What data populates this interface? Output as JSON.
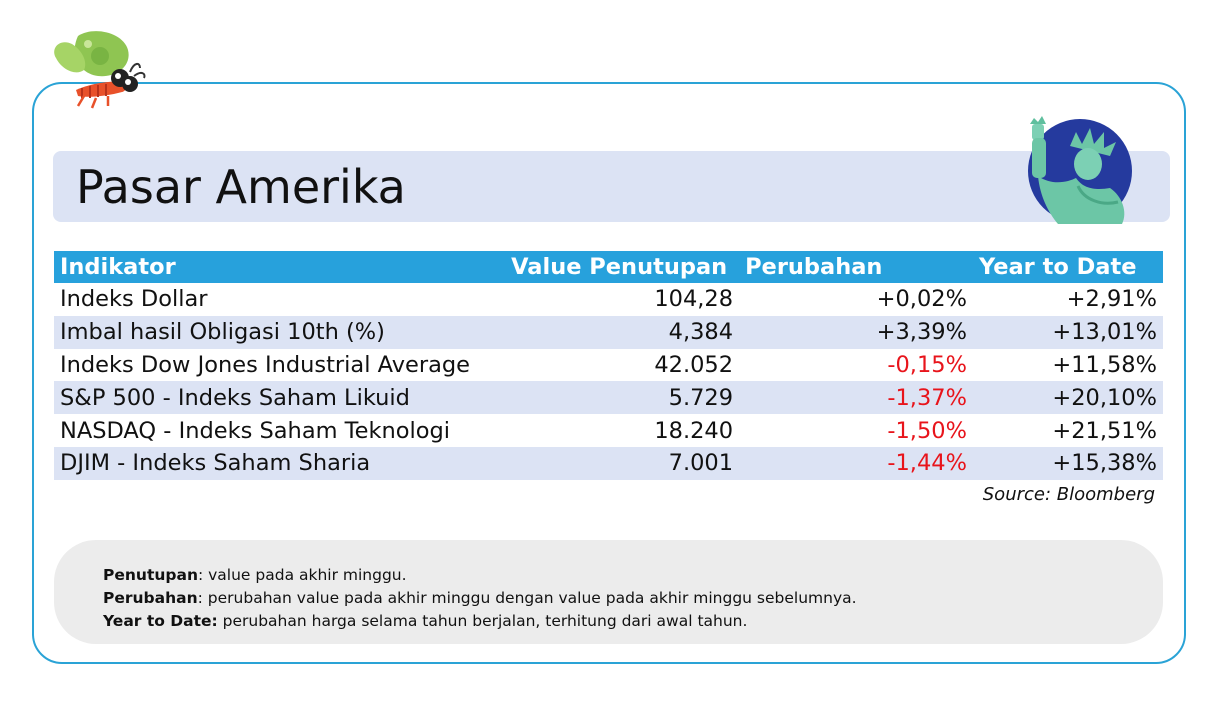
{
  "title": "Pasar Amerika",
  "table": {
    "headers": [
      "Indikator",
      "Value Penutupan",
      "Perubahan",
      "Year to Date"
    ],
    "rows": [
      {
        "indikator": "Indeks Dollar",
        "value": "104,28",
        "perubahan": "+0,02%",
        "ytd": "+2,91%"
      },
      {
        "indikator": "Imbal hasil Obligasi 10th (%)",
        "value": "4,384",
        "perubahan": "+3,39%",
        "ytd": "+13,01%"
      },
      {
        "indikator": "Indeks Dow Jones Industrial Average",
        "value": "42.052",
        "perubahan": "-0,15%",
        "ytd": "+11,58%"
      },
      {
        "indikator": "S&P 500 - Indeks Saham Likuid",
        "value": "5.729",
        "perubahan": "-1,37%",
        "ytd": "+20,10%"
      },
      {
        "indikator": "NASDAQ - Indeks Saham Teknologi",
        "value": "18.240",
        "perubahan": "-1,50%",
        "ytd": "+21,51%"
      },
      {
        "indikator": "DJIM - Indeks Saham Sharia",
        "value": "7.001",
        "perubahan": "-1,44%",
        "ytd": "+15,38%"
      }
    ]
  },
  "source": "Source: Bloomberg",
  "notes": [
    {
      "term": "Penutupan",
      "text": ": value pada akhir minggu."
    },
    {
      "term": "Perubahan",
      "text": ": perubahan value pada akhir minggu dengan value pada akhir minggu sebelumnya."
    },
    {
      "term": "Year to Date:",
      "text": " perubahan harga selama tahun berjalan, terhitung dari awal tahun."
    }
  ],
  "colors": {
    "header": "#27a1dc",
    "stripe": "#dce3f4",
    "negative": "#e8141b",
    "frame": "#2aa3d6"
  },
  "icons": {
    "mascot": "butterfly-mascot-icon",
    "landmark": "statue-of-liberty-icon"
  }
}
